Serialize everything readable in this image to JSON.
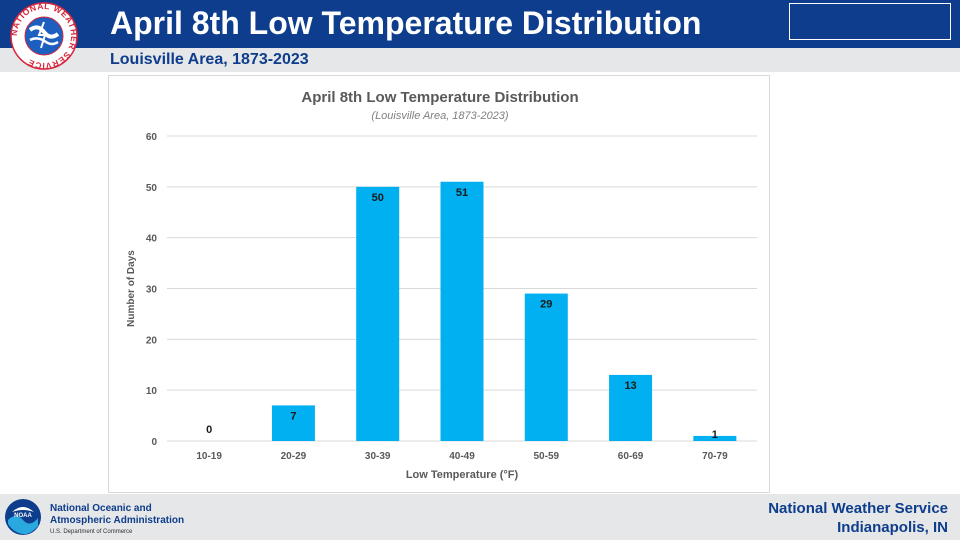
{
  "header": {
    "title": "April 8th Low Temperature Distribution",
    "subtitle": "Louisville Area, 1873-2023",
    "logo_icon": "nws-logo-icon",
    "logo_ring_text": "NATIONAL WEATHER SERVICE"
  },
  "footer": {
    "noaa_line1": "National Oceanic and",
    "noaa_line2": "Atmospheric Administration",
    "noaa_dept": "U.S. Department of Commerce",
    "noaa_logo_icon": "noaa-logo-icon",
    "nws_line1": "National Weather Service",
    "nws_line2": "Indianapolis, IN"
  },
  "colors": {
    "header_blue": "#0d3d8c",
    "bar_blue": "#00b0f0",
    "light_gray": "#e6e7e8"
  },
  "chart_data": {
    "type": "bar",
    "title": "April 8th Low Temperature Distribution",
    "subtitle": "(Louisville Area, 1873-2023)",
    "xlabel": "Low Temperature (°F)",
    "ylabel": "Number of Days",
    "categories": [
      "10-19",
      "20-29",
      "30-39",
      "40-49",
      "50-59",
      "60-69",
      "70-79"
    ],
    "values": [
      0,
      7,
      50,
      51,
      29,
      13,
      1
    ],
    "ylim": [
      0,
      60
    ],
    "yticks": [
      0,
      10,
      20,
      30,
      40,
      50,
      60
    ],
    "grid": true,
    "legend": "none"
  }
}
